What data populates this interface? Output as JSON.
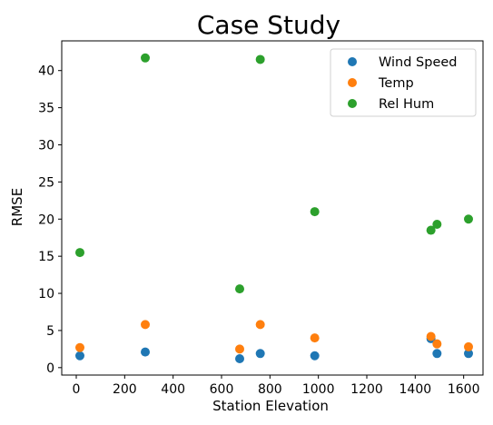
{
  "chart_data": {
    "type": "scatter",
    "title": "Case Study",
    "xlabel": "Station Elevation",
    "ylabel": "RMSE",
    "xlim": [
      -60,
      1680
    ],
    "ylim": [
      -1,
      44
    ],
    "xticks": [
      0,
      200,
      400,
      600,
      800,
      1000,
      1200,
      1400,
      1600
    ],
    "yticks": [
      0,
      5,
      10,
      15,
      20,
      25,
      30,
      35,
      40
    ],
    "grid": false,
    "legend_position": "top-right",
    "series": [
      {
        "name": "Wind Speed",
        "color": "#1f77b4",
        "points": [
          [
            15,
            1.6
          ],
          [
            285,
            2.1
          ],
          [
            675,
            1.2
          ],
          [
            760,
            1.9
          ],
          [
            985,
            1.6
          ],
          [
            1465,
            3.9
          ],
          [
            1490,
            1.9
          ],
          [
            1620,
            1.9
          ]
        ]
      },
      {
        "name": "Temp",
        "color": "#ff7f0e",
        "points": [
          [
            15,
            2.7
          ],
          [
            285,
            5.8
          ],
          [
            675,
            2.5
          ],
          [
            760,
            5.8
          ],
          [
            985,
            4.0
          ],
          [
            1465,
            4.2
          ],
          [
            1490,
            3.2
          ],
          [
            1620,
            2.8
          ]
        ]
      },
      {
        "name": "Rel Hum",
        "color": "#2ca02c",
        "points": [
          [
            15,
            15.5
          ],
          [
            285,
            41.7
          ],
          [
            675,
            10.6
          ],
          [
            760,
            41.5
          ],
          [
            985,
            21.0
          ],
          [
            1465,
            18.5
          ],
          [
            1490,
            19.3
          ],
          [
            1620,
            20.0
          ]
        ]
      }
    ]
  }
}
